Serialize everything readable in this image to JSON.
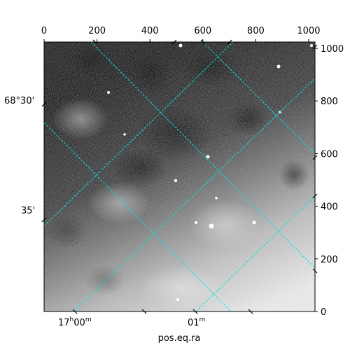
{
  "figure": {
    "xlabel": "pos.eq.ra",
    "colors": {
      "grid": "#00e5e5",
      "frame": "#000000",
      "background": "#ffffff"
    },
    "colormap": "gray"
  },
  "pixel_axes": {
    "x": {
      "range": [
        0,
        1024
      ],
      "ticks": [
        0,
        200,
        400,
        600,
        800,
        1000
      ],
      "labels": [
        "0",
        "200",
        "400",
        "600",
        "800",
        "1000"
      ],
      "position": "top"
    },
    "y": {
      "range": [
        0,
        1024
      ],
      "ticks": [
        0,
        200,
        400,
        600,
        800,
        1000
      ],
      "labels": [
        "0",
        "200",
        "400",
        "600",
        "800",
        "1000"
      ],
      "position": "right"
    }
  },
  "world_axes": {
    "ra": {
      "labels": [
        {
          "main": "17",
          "sup1": "h",
          "mid": "00",
          "sup2": "m"
        },
        {
          "main": "01",
          "sup1": "m",
          "mid": "",
          "sup2": ""
        }
      ]
    },
    "dec": {
      "labels": [
        "68°30'",
        "35'"
      ]
    }
  }
}
